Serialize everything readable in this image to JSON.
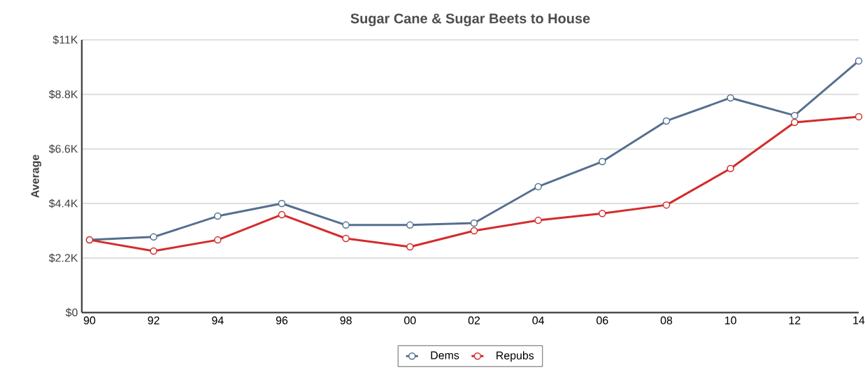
{
  "chart_data": {
    "type": "line",
    "title": "Sugar Cane & Sugar Beets to House",
    "ylabel": "Average",
    "categories": [
      "90",
      "92",
      "94",
      "96",
      "98",
      "00",
      "02",
      "04",
      "06",
      "08",
      "10",
      "12",
      "14"
    ],
    "series": [
      {
        "name": "Dems",
        "color": "#546f8f",
        "values": [
          2930,
          3050,
          3890,
          4400,
          3530,
          3530,
          3610,
          5080,
          6090,
          7730,
          8660,
          7950,
          10150
        ]
      },
      {
        "name": "Repubs",
        "color": "#d42b2b",
        "values": [
          2930,
          2480,
          2930,
          3950,
          2990,
          2650,
          3300,
          3720,
          4000,
          4340,
          5810,
          7670,
          7900
        ]
      }
    ],
    "ylim": [
      0,
      11000
    ],
    "yticks": [
      {
        "value": 0,
        "label": "$0"
      },
      {
        "value": 2200,
        "label": "$2.2K"
      },
      {
        "value": 4400,
        "label": "$4.4K"
      },
      {
        "value": 6600,
        "label": "$6.6K"
      },
      {
        "value": 8800,
        "label": "$8.8K"
      },
      {
        "value": 11000,
        "label": "$11K"
      }
    ],
    "grid": "y",
    "legend": "bottom",
    "marker": "circle",
    "line_style": "solid"
  }
}
